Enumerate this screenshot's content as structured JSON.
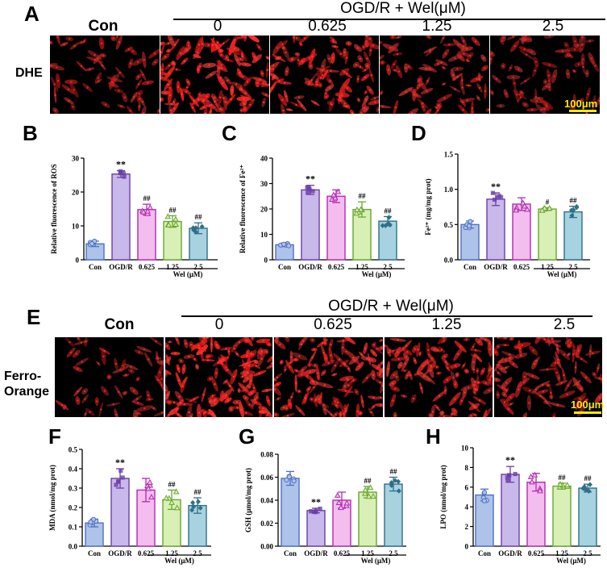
{
  "panel_letters": [
    "A",
    "B",
    "C",
    "D",
    "E",
    "F",
    "G",
    "H"
  ],
  "section_a": {
    "treatment_header": "OGD/R + Wel(μM)",
    "column_labels": [
      "Con",
      "0",
      "0.625",
      "1.25",
      "2.5"
    ],
    "row_label": "DHE",
    "scale_bar": "100μm",
    "stain_color": "#e0141a"
  },
  "section_e": {
    "treatment_header": "OGD/R + Wel(μM)",
    "column_labels": [
      "Con",
      "0",
      "0.625",
      "1.25",
      "2.5"
    ],
    "row_label_line1": "Ferro-",
    "row_label_line2": "Orange",
    "scale_bar": "100μm",
    "stain_color": "#e0141a"
  },
  "colors": {
    "con": "#aec3ea",
    "ogdr": "#c9b8ea",
    "w0625": "#f3bdee",
    "w125": "#d8f0b5",
    "w25": "#a7d2e0",
    "edge_con": "#4f6fbf",
    "edge_ogdr": "#6a3fa8",
    "edge_w0625": "#b22bb0",
    "edge_w125": "#6aa630",
    "edge_w25": "#2f6f88"
  },
  "chart_data": [
    {
      "id": "B",
      "type": "bar",
      "categories": [
        "Con",
        "OGD/R",
        "0.625",
        "1.25",
        "2.5"
      ],
      "values": [
        4.7,
        25.3,
        14.8,
        11.3,
        9.3
      ],
      "errors": [
        0.8,
        1.0,
        1.6,
        1.7,
        1.6
      ],
      "significance": [
        "",
        "**",
        "##",
        "##",
        "##"
      ],
      "ylabel": "Relative fluorescence of ROS",
      "group_label": "Wel (μM)",
      "ylim": [
        0,
        30
      ],
      "yticks": [
        0,
        10,
        20,
        30
      ],
      "ytick_labels": [
        "0",
        "10",
        "20",
        "30"
      ]
    },
    {
      "id": "C",
      "type": "bar",
      "categories": [
        "Con",
        "OGD/R",
        "0.625",
        "1.25",
        "2.5"
      ],
      "values": [
        5.9,
        27.5,
        25.0,
        19.8,
        15.2
      ],
      "errors": [
        0.7,
        1.8,
        2.5,
        3.0,
        1.8
      ],
      "significance": [
        "",
        "**",
        "",
        "##",
        "##"
      ],
      "ylabel": "Relative fluorescence of Fe²⁺",
      "group_label": "Wel (μM)",
      "ylim": [
        0,
        40
      ],
      "yticks": [
        0,
        10,
        20,
        30,
        40
      ],
      "ytick_labels": [
        "0",
        "10",
        "20",
        "30",
        "40"
      ]
    },
    {
      "id": "D",
      "type": "bar",
      "categories": [
        "Con",
        "OGD/R",
        "0.625",
        "1.25",
        "2.5"
      ],
      "values": [
        0.5,
        0.86,
        0.79,
        0.72,
        0.68
      ],
      "errors": [
        0.05,
        0.09,
        0.09,
        0.02,
        0.08
      ],
      "significance": [
        "",
        "**",
        "",
        "#",
        "##"
      ],
      "ylabel": "Fe²⁺ (mg/mg prot)",
      "group_label": "Wel (μM)",
      "ylim": [
        0,
        1.5
      ],
      "yticks": [
        0,
        0.5,
        1.0,
        1.5
      ],
      "ytick_labels": [
        "0.0",
        "0.5",
        "1.0",
        "1.5"
      ]
    },
    {
      "id": "F",
      "type": "bar",
      "categories": [
        "Con",
        "OGD/R",
        "0.625",
        "1.25",
        "2.5"
      ],
      "values": [
        0.12,
        0.35,
        0.29,
        0.24,
        0.21
      ],
      "errors": [
        0.02,
        0.05,
        0.06,
        0.05,
        0.04
      ],
      "significance": [
        "",
        "**",
        "",
        "##",
        "##"
      ],
      "ylabel": "MDA (nmol/mg prot)",
      "group_label": "Wel (μM)",
      "ylim": [
        0,
        0.5
      ],
      "yticks": [
        0,
        0.1,
        0.2,
        0.3,
        0.4,
        0.5
      ],
      "ytick_labels": [
        "0.0",
        "0.1",
        "0.2",
        "0.3",
        "0.4",
        "0.5"
      ]
    },
    {
      "id": "G",
      "type": "bar",
      "categories": [
        "Con",
        "OGD/R",
        "0.625",
        "1.25",
        "2.5"
      ],
      "values": [
        0.059,
        0.031,
        0.04,
        0.047,
        0.054
      ],
      "errors": [
        0.006,
        0.002,
        0.007,
        0.005,
        0.006
      ],
      "significance": [
        "",
        "**",
        "",
        "##",
        "##"
      ],
      "ylabel": "GSH (μmol/mg prot)",
      "group_label": "Wel (μM)",
      "ylim": [
        0,
        0.08
      ],
      "yticks": [
        0,
        0.02,
        0.04,
        0.06,
        0.08
      ],
      "ytick_labels": [
        "0.00",
        "0.02",
        "0.04",
        "0.06",
        "0.08"
      ]
    },
    {
      "id": "H",
      "type": "bar",
      "categories": [
        "Con",
        "OGD/R",
        "0.625",
        "1.25",
        "2.5"
      ],
      "values": [
        5.2,
        7.3,
        6.5,
        6.1,
        5.9
      ],
      "errors": [
        0.6,
        0.8,
        0.9,
        0.3,
        0.4
      ],
      "significance": [
        "",
        "**",
        "",
        "##",
        "##"
      ],
      "ylabel": "LPO (nmol/mg prot)",
      "group_label": "Wel (μM)",
      "ylim": [
        0,
        10
      ],
      "yticks": [
        0,
        2,
        4,
        6,
        8,
        10
      ],
      "ytick_labels": [
        "0",
        "2",
        "4",
        "6",
        "8",
        "10"
      ]
    }
  ]
}
